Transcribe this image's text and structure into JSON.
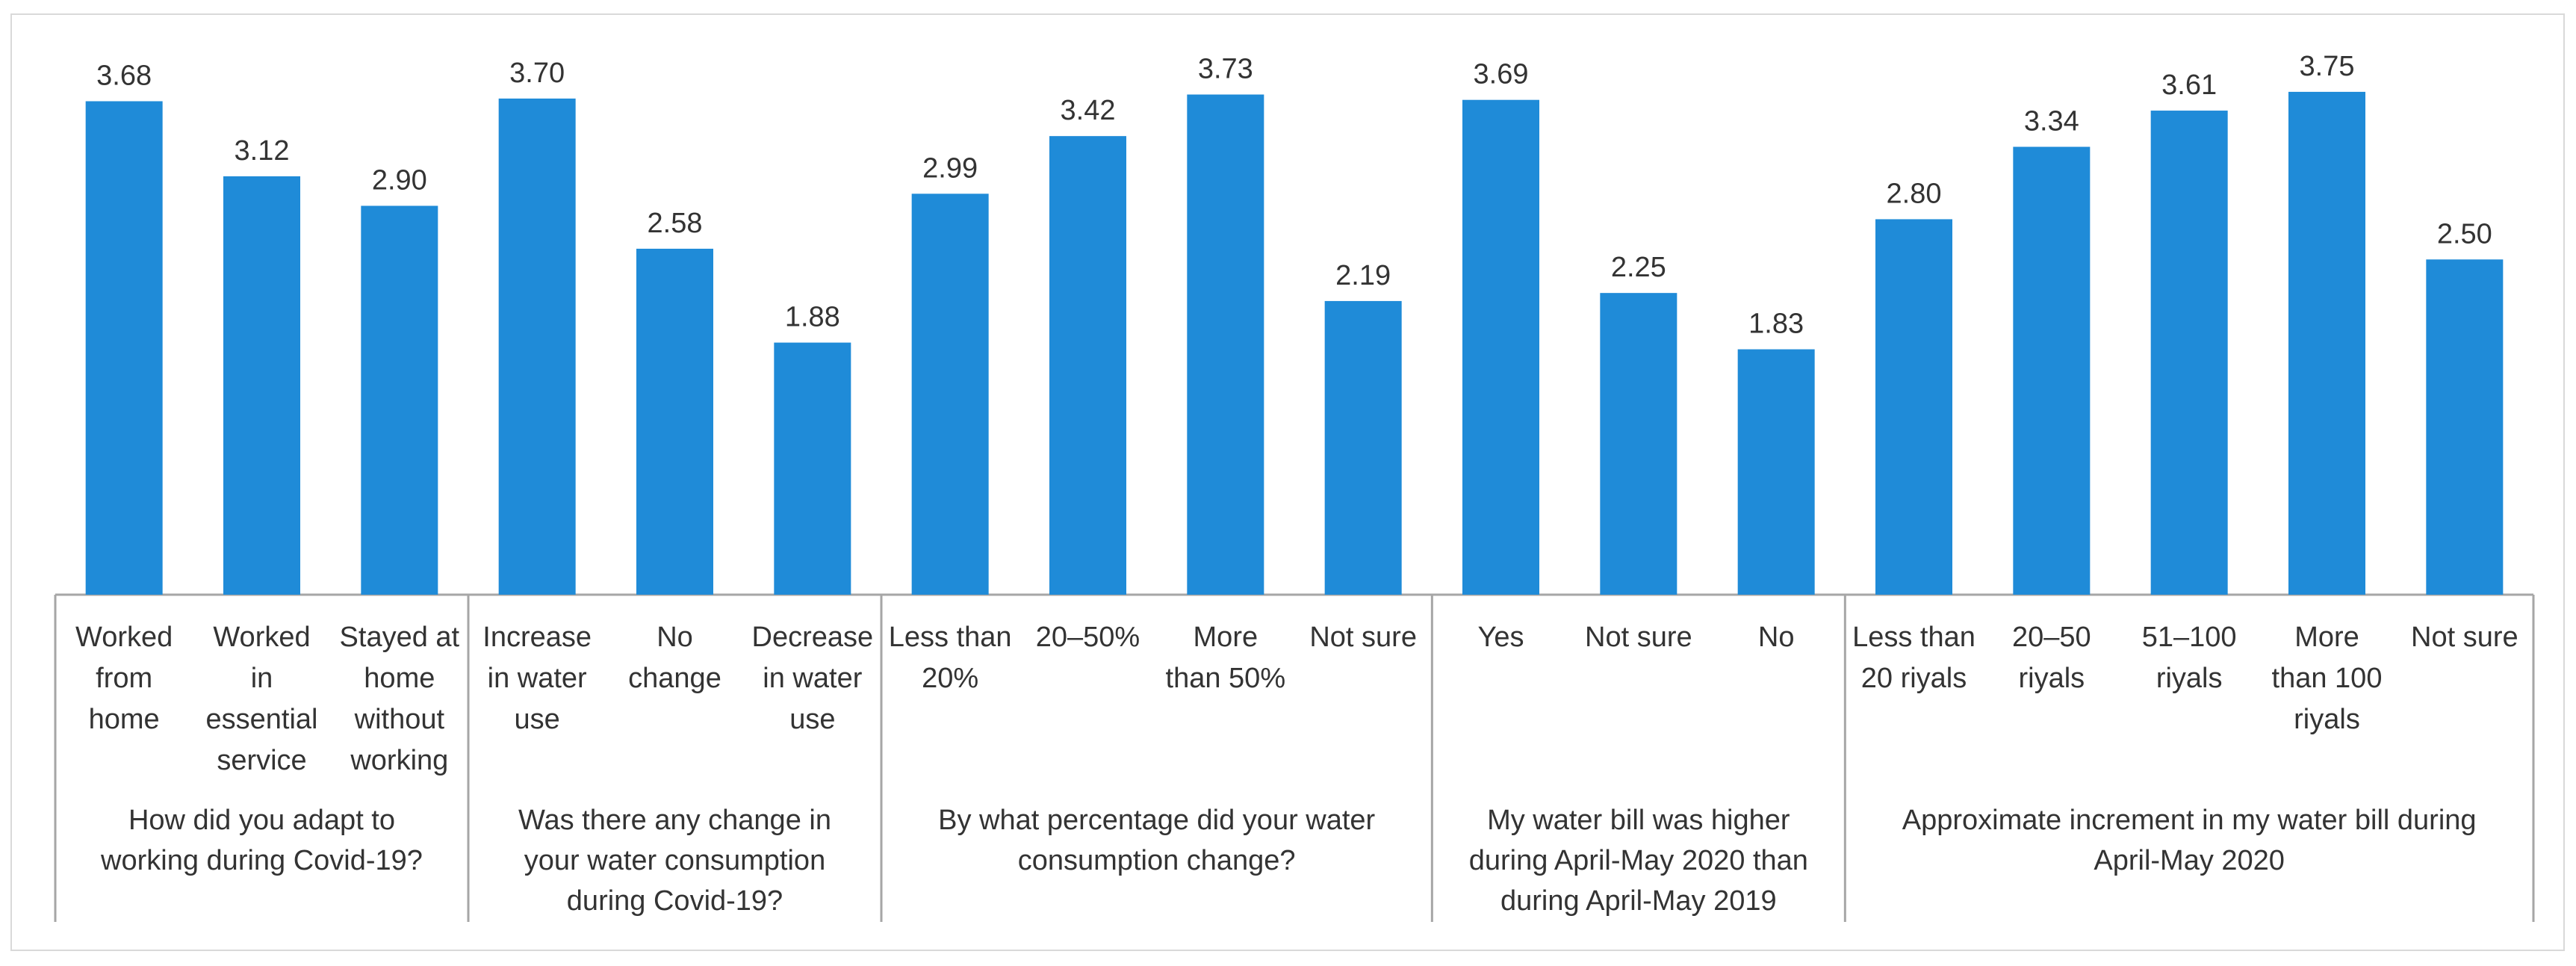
{
  "chart_data": {
    "type": "bar",
    "title": "",
    "xlabel": "",
    "ylabel": "",
    "ylim": [
      0,
      3.9
    ],
    "bar_color": "#1F8BD8",
    "axis_color": "#a6a6a6",
    "text_color": "#333333",
    "groups": [
      {
        "label": [
          "How did you adapt to",
          "working during Covid-19?"
        ],
        "bars": [
          {
            "label": [
              "Worked",
              "from",
              "home"
            ],
            "value": 3.68,
            "value_label": "3.68"
          },
          {
            "label": [
              "Worked",
              "in",
              "essential",
              "service"
            ],
            "value": 3.12,
            "value_label": "3.12"
          },
          {
            "label": [
              "Stayed at",
              "home",
              "without",
              "working"
            ],
            "value": 2.9,
            "value_label": "2.90"
          }
        ]
      },
      {
        "label": [
          "Was there any change in",
          "your water consumption",
          "during Covid-19?"
        ],
        "bars": [
          {
            "label": [
              "Increase",
              "in water",
              "use"
            ],
            "value": 3.7,
            "value_label": "3.70"
          },
          {
            "label": [
              "No",
              "change"
            ],
            "value": 2.58,
            "value_label": "2.58"
          },
          {
            "label": [
              "Decrease",
              "in water",
              "use"
            ],
            "value": 1.88,
            "value_label": "1.88"
          }
        ]
      },
      {
        "label": [
          "By what percentage did your water",
          "consumption change?"
        ],
        "bars": [
          {
            "label": [
              "Less than",
              "20%"
            ],
            "value": 2.99,
            "value_label": "2.99"
          },
          {
            "label": [
              "20–50%"
            ],
            "value": 3.42,
            "value_label": "3.42"
          },
          {
            "label": [
              "More",
              "than 50%"
            ],
            "value": 3.73,
            "value_label": "3.73"
          },
          {
            "label": [
              "Not sure"
            ],
            "value": 2.19,
            "value_label": "2.19"
          }
        ]
      },
      {
        "label": [
          "My water bill was higher",
          "during April-May 2020 than",
          "during April-May 2019"
        ],
        "bars": [
          {
            "label": [
              "Yes"
            ],
            "value": 3.69,
            "value_label": "3.69"
          },
          {
            "label": [
              "Not sure"
            ],
            "value": 2.25,
            "value_label": "2.25"
          },
          {
            "label": [
              "No"
            ],
            "value": 1.83,
            "value_label": "1.83"
          }
        ]
      },
      {
        "label": [
          "Approximate increment in my water bill during",
          "April-May 2020"
        ],
        "bars": [
          {
            "label": [
              "Less than",
              "20 riyals"
            ],
            "value": 2.8,
            "value_label": "2.80"
          },
          {
            "label": [
              "20–50",
              "riyals"
            ],
            "value": 3.34,
            "value_label": "3.34"
          },
          {
            "label": [
              "51–100",
              "riyals"
            ],
            "value": 3.61,
            "value_label": "3.61"
          },
          {
            "label": [
              "More",
              "than 100",
              "riyals"
            ],
            "value": 3.75,
            "value_label": "3.75"
          },
          {
            "label": [
              "Not sure"
            ],
            "value": 2.5,
            "value_label": "2.50"
          }
        ]
      }
    ]
  }
}
